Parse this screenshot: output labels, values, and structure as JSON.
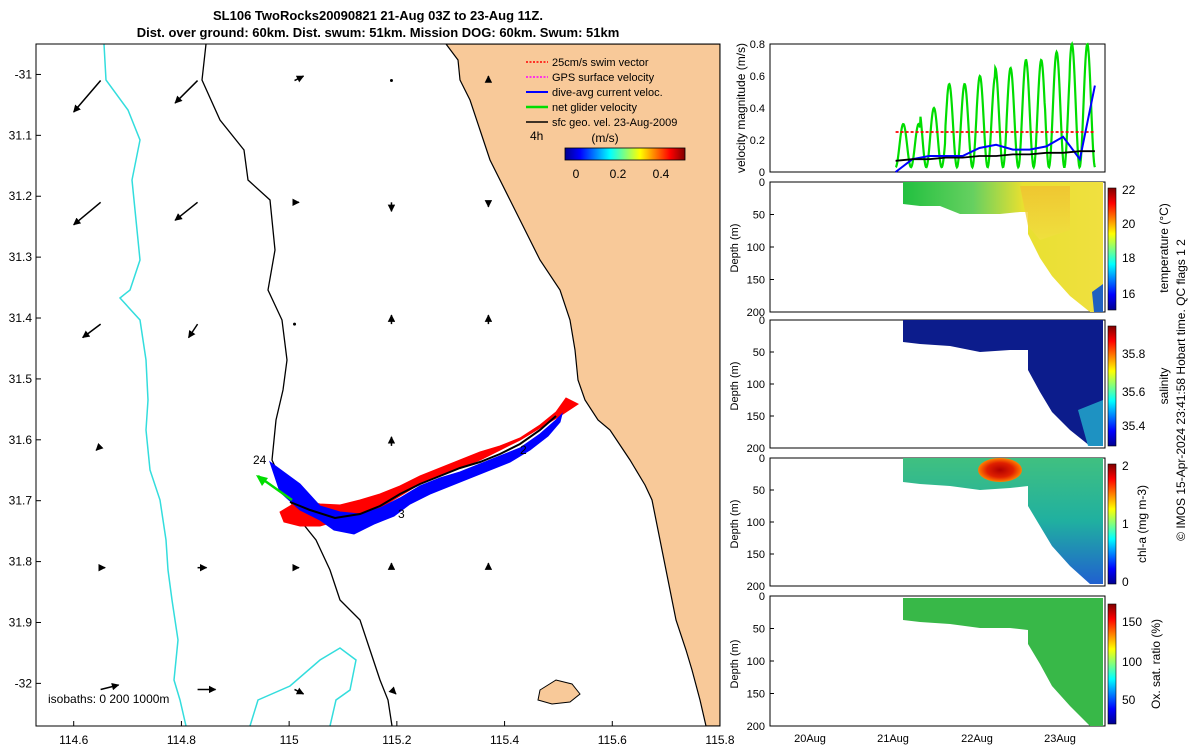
{
  "title": {
    "line1": "SL106 TwoRocks20090821 21-Aug 03Z to 23-Aug 11Z.",
    "line2": "Dist. over ground: 60km. Dist. swum: 51km. Mission DOG: 60km. Swum: 51km"
  },
  "colors": {
    "land": "#f8c999",
    "isobath_200": "#000000",
    "isobath_1000": "#33dddd",
    "swim_vector": "#ff0000",
    "gps_surface": "#ff00ff",
    "dive_avg": "#0000ff",
    "net_glider": "#00dd00",
    "sfc_geo": "#000000"
  },
  "map": {
    "xlim": [
      114.53,
      115.8
    ],
    "ylim": [
      -32.07,
      -30.95
    ],
    "xticks": [
      114.6,
      114.8,
      115,
      115.2,
      115.4,
      115.6,
      115.8
    ],
    "xtick_labels": [
      "114.6",
      "114.8",
      "115",
      "115.2",
      "115.4",
      "115.6",
      "115.8"
    ],
    "yticks": [
      -31,
      -31.1,
      -31.2,
      -31.3,
      -31.4,
      -31.5,
      -31.6,
      -31.7,
      -31.8,
      -31.9,
      -32
    ],
    "ytick_labels": [
      "-31",
      "31.1",
      "31.2",
      "31.3",
      "31.4",
      "31.5",
      "31.6",
      "31.7",
      "31.8",
      "31.9",
      "-32"
    ],
    "legend": [
      {
        "label": "25cm/s swim vector",
        "color_key": "swim_vector",
        "dotted": true
      },
      {
        "label": "GPS surface velocity",
        "color_key": "gps_surface",
        "dotted": true
      },
      {
        "label": "dive-avg current veloc.",
        "color_key": "dive_avg",
        "dotted": false
      },
      {
        "label": "net glider velocity",
        "color_key": "net_glider",
        "dotted": false
      },
      {
        "label": "sfc geo. vel. 23-Aug-2009",
        "color_key": "sfc_geo",
        "dotted": false
      }
    ],
    "scale_label": "4h",
    "colorbar_label": "(m/s)",
    "colorbar_ticks": [
      "0",
      "0.2",
      "0.4"
    ],
    "isobath_note": "isobaths: 0   200  1000m",
    "track_labels": [
      {
        "text": "24",
        "lon": 114.94,
        "lat": -31.655
      },
      {
        "text": "2",
        "lon": 115.48,
        "lat": -31.624
      },
      {
        "text": "3",
        "lon": 115.18,
        "lat": -31.74
      }
    ]
  },
  "panels": {
    "velocity": {
      "ylabel": "velocity magnitude (m/s)",
      "yticks": [
        "0",
        "0.2",
        "0.4",
        "0.6",
        "0.8"
      ]
    },
    "temperature": {
      "ylabel": "Depth (m)",
      "cbar_label": "temperature (°C)",
      "cbar_ticks": [
        "16",
        "18",
        "20",
        "22"
      ]
    },
    "salinity": {
      "ylabel": "Depth (m)",
      "cbar_label": "salinity",
      "cbar_ticks": [
        "35.4",
        "35.6",
        "35.8"
      ]
    },
    "chla": {
      "ylabel": "Depth (m)",
      "cbar_label": "chl-a (mg m-3)",
      "cbar_ticks": [
        "0",
        "1",
        "2"
      ]
    },
    "oxygen": {
      "ylabel": "Depth (m)",
      "cbar_label": "Ox. sat. ratio (%)",
      "cbar_ticks": [
        "50",
        "100",
        "150"
      ]
    },
    "depth_ticks": [
      "0",
      "50",
      "100",
      "150",
      "200"
    ],
    "time_ticks": [
      "20Aug",
      "21Aug",
      "22Aug",
      "23Aug"
    ]
  },
  "footer": "© IMOS 15-Apr-2024 23:41:58 Hobart time. QC flags 1  2",
  "chart_data": [
    {
      "type": "scatter",
      "title": "SL106 TwoRocks20090821 21-Aug 03Z to 23-Aug 11Z.",
      "xlim": [
        114.53,
        115.8
      ],
      "ylim": [
        -32.07,
        -30.95
      ],
      "glider_track": {
        "lon": [
          115.01,
          115.05,
          115.1,
          115.15,
          115.2,
          115.25,
          115.3,
          115.35,
          115.4,
          115.45,
          115.5,
          115.54
        ],
        "lat": [
          -31.71,
          -31.725,
          -31.735,
          -31.73,
          -31.715,
          -31.695,
          -31.675,
          -31.655,
          -31.64,
          -31.62,
          -31.6,
          -31.578
        ]
      },
      "sfc_geo_vectors": [
        {
          "lon": 114.65,
          "lat": -31.01,
          "u": -0.06,
          "v": -0.07
        },
        {
          "lon": 114.83,
          "lat": -31.01,
          "u": -0.05,
          "v": -0.05
        },
        {
          "lon": 114.65,
          "lat": -31.21,
          "u": -0.06,
          "v": -0.05
        },
        {
          "lon": 114.83,
          "lat": -31.21,
          "u": -0.05,
          "v": -0.04
        },
        {
          "lon": 114.65,
          "lat": -31.41,
          "u": -0.04,
          "v": -0.03
        },
        {
          "lon": 114.83,
          "lat": -31.41,
          "u": -0.02,
          "v": -0.03
        },
        {
          "lon": 114.65,
          "lat": -31.61,
          "u": -0.01,
          "v": -0.01
        },
        {
          "lon": 114.65,
          "lat": -31.81,
          "u": 0.01,
          "v": 0.0
        },
        {
          "lon": 114.83,
          "lat": -31.81,
          "u": 0.02,
          "v": 0.0
        },
        {
          "lon": 114.65,
          "lat": -32.01,
          "u": 0.04,
          "v": 0.01
        },
        {
          "lon": 114.83,
          "lat": -32.01,
          "u": 0.04,
          "v": 0.0
        },
        {
          "lon": 115.01,
          "lat": -31.01,
          "u": 0.02,
          "v": 0.01
        },
        {
          "lon": 115.19,
          "lat": -31.01,
          "u": 0.0,
          "v": 0.0
        },
        {
          "lon": 115.37,
          "lat": -31.01,
          "u": 0.0,
          "v": 0.01
        },
        {
          "lon": 115.01,
          "lat": -31.21,
          "u": 0.01,
          "v": 0.0
        },
        {
          "lon": 115.19,
          "lat": -31.21,
          "u": 0.0,
          "v": -0.02
        },
        {
          "lon": 115.37,
          "lat": -31.21,
          "u": 0.0,
          "v": -0.01
        },
        {
          "lon": 115.01,
          "lat": -31.41,
          "u": 0.0,
          "v": 0.0
        },
        {
          "lon": 115.19,
          "lat": -31.41,
          "u": 0.0,
          "v": 0.02
        },
        {
          "lon": 115.37,
          "lat": -31.41,
          "u": 0.0,
          "v": 0.02
        },
        {
          "lon": 115.19,
          "lat": -31.61,
          "u": 0.0,
          "v": 0.02
        },
        {
          "lon": 115.01,
          "lat": -31.81,
          "u": 0.01,
          "v": 0.0
        },
        {
          "lon": 115.19,
          "lat": -31.81,
          "u": 0.0,
          "v": 0.01
        },
        {
          "lon": 115.37,
          "lat": -31.81,
          "u": 0.0,
          "v": 0.01
        },
        {
          "lon": 115.01,
          "lat": -32.01,
          "u": 0.02,
          "v": -0.01
        },
        {
          "lon": 115.19,
          "lat": -32.01,
          "u": 0.01,
          "v": -0.01
        }
      ]
    },
    {
      "type": "line",
      "ylabel": "velocity magnitude (m/s)",
      "ylim": [
        0,
        0.8
      ],
      "xlim": [
        "19.6 Aug",
        "23.6 Aug"
      ],
      "x_days": [
        21.1,
        21.3,
        21.5,
        21.7,
        21.9,
        22.1,
        22.3,
        22.5,
        22.7,
        22.9,
        23.1,
        23.3,
        23.48
      ],
      "series": [
        {
          "color_key": "swim_vector",
          "values": [
            0.25,
            0.25,
            0.25,
            0.25,
            0.25,
            0.25,
            0.25,
            0.25,
            0.25,
            0.25,
            0.25,
            0.25,
            0.25
          ]
        },
        {
          "color_key": "dive_avg",
          "values": [
            0.0,
            0.08,
            0.1,
            0.1,
            0.1,
            0.15,
            0.17,
            0.14,
            0.14,
            0.16,
            0.22,
            0.08,
            0.54
          ]
        },
        {
          "color_key": "sfc_geo",
          "values": [
            0.07,
            0.08,
            0.08,
            0.09,
            0.09,
            0.1,
            0.1,
            0.11,
            0.11,
            0.12,
            0.12,
            0.13,
            0.13
          ]
        }
      ],
      "net_glider_oscillation": {
        "min": 0.03,
        "max": [
          0.3,
          0.4,
          0.55,
          0.6,
          0.65,
          0.7,
          0.75,
          0.8
        ],
        "cycles": 13
      }
    },
    {
      "type": "heatmap",
      "ylabel": "Depth (m)",
      "zlabel": "temperature (°C)",
      "zlim": [
        15,
        22
      ],
      "ylim": [
        200,
        0
      ]
    },
    {
      "type": "heatmap",
      "ylabel": "Depth (m)",
      "zlabel": "salinity",
      "zlim": [
        35.3,
        35.9
      ],
      "ylim": [
        200,
        0
      ]
    },
    {
      "type": "heatmap",
      "ylabel": "Depth (m)",
      "zlabel": "chl-a (mg m-3)",
      "zlim": [
        0,
        2
      ],
      "ylim": [
        200,
        0
      ]
    },
    {
      "type": "heatmap",
      "ylabel": "Depth (m)",
      "zlabel": "Ox. sat. ratio (%)",
      "zlim": [
        20,
        175
      ],
      "ylim": [
        200,
        0
      ]
    }
  ]
}
